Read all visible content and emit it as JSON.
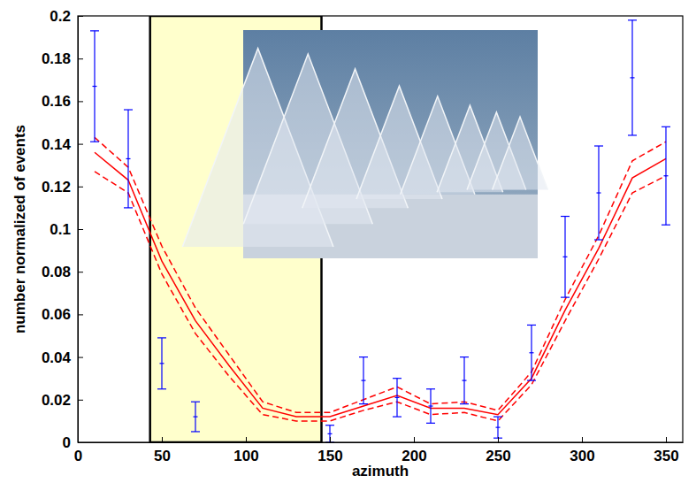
{
  "chart_data": {
    "type": "line",
    "xlabel": "azimuth",
    "ylabel": "number normalized of events",
    "x": [
      10,
      30,
      50,
      70,
      90,
      110,
      130,
      150,
      170,
      190,
      210,
      230,
      250,
      270,
      290,
      310,
      330,
      350
    ],
    "xlim": [
      0,
      360
    ],
    "xticks": [
      0,
      50,
      100,
      150,
      200,
      250,
      300,
      350
    ],
    "ylim": [
      0,
      0.2
    ],
    "yticks": [
      0,
      0.02,
      0.04,
      0.06,
      0.08,
      0.1,
      0.12,
      0.14,
      0.16,
      0.18,
      0.2
    ],
    "grid": false,
    "band": {
      "range": [
        43,
        145
      ],
      "color": "#ffffcc"
    },
    "series": [
      {
        "type": "line",
        "color": "#ff0000",
        "line_style": "solid",
        "values": [
          0.136,
          0.123,
          0.085,
          0.057,
          0.036,
          0.016,
          0.012,
          0.012,
          0.017,
          0.022,
          0.016,
          0.016,
          0.013,
          0.03,
          0.062,
          0.091,
          0.124,
          0.133
        ]
      },
      {
        "type": "line",
        "color": "#ff0000",
        "line_style": "dashed",
        "values": [
          0.143,
          0.129,
          0.092,
          0.063,
          0.041,
          0.019,
          0.014,
          0.014,
          0.02,
          0.026,
          0.018,
          0.019,
          0.015,
          0.033,
          0.067,
          0.097,
          0.132,
          0.141
        ]
      },
      {
        "type": "line",
        "color": "#ff0000",
        "line_style": "dashed",
        "values": [
          0.127,
          0.117,
          0.079,
          0.051,
          0.031,
          0.013,
          0.01,
          0.01,
          0.015,
          0.019,
          0.013,
          0.014,
          0.01,
          0.027,
          0.057,
          0.086,
          0.117,
          0.125
        ]
      },
      {
        "type": "errorbar",
        "color": "#0000ff",
        "marker": "point",
        "values": [
          0.167,
          0.133,
          0.037,
          0.012,
          null,
          null,
          null,
          0.004,
          0.029,
          0.021,
          0.017,
          0.029,
          0.007,
          0.042,
          0.087,
          0.117,
          0.171,
          0.125
        ],
        "errors": [
          0.026,
          0.023,
          0.012,
          0.007,
          null,
          null,
          null,
          0.004,
          0.011,
          0.009,
          0.008,
          0.011,
          0.005,
          0.013,
          0.019,
          0.022,
          0.027,
          0.023
        ]
      }
    ]
  }
}
